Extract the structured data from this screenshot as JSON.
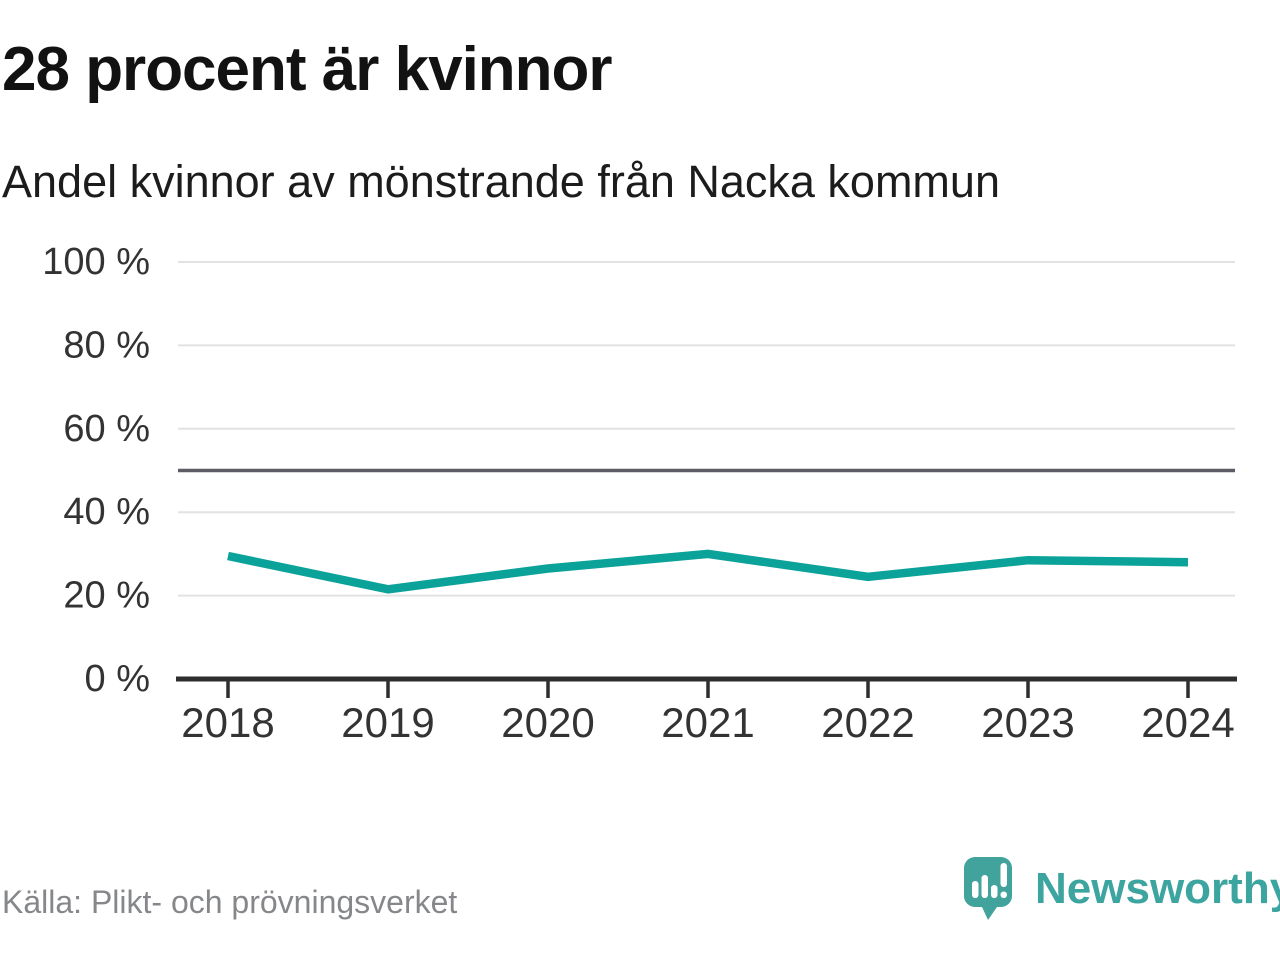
{
  "header": {
    "title": "28 procent är kvinnor",
    "subtitle": "Andel kvinnor av mönstrande från Nacka kommun"
  },
  "chart_data": {
    "type": "line",
    "title": "28 procent är kvinnor",
    "subtitle": "Andel kvinnor av mönstrande från Nacka kommun",
    "categories": [
      "2018",
      "2019",
      "2020",
      "2021",
      "2022",
      "2023",
      "2024"
    ],
    "series": [
      {
        "name": "Andel kvinnor av mönstrande",
        "values": [
          29.5,
          21.5,
          26.5,
          30,
          24.5,
          28.5,
          28
        ]
      }
    ],
    "unit": "%",
    "ylim": [
      0,
      100
    ],
    "yticks": [
      0,
      20,
      40,
      60,
      80,
      100
    ],
    "ytick_suffix": " %",
    "reference_line": 50,
    "grid": "horizontal",
    "legend_position": "none"
  },
  "footer": {
    "source": "Källa: Plikt- och prövningsverket",
    "brand": "Newsworthy"
  },
  "colors": {
    "line": "#0ba29a",
    "grid": "#e2e2e2",
    "reference_line": "#5c5c66",
    "axis": "#2e2e2e",
    "tick_label": "#333333",
    "brand_teal": "#3da5a0"
  },
  "icons": {
    "logo_mark": "newsworthy-speech-bubble-barchart-icon"
  }
}
